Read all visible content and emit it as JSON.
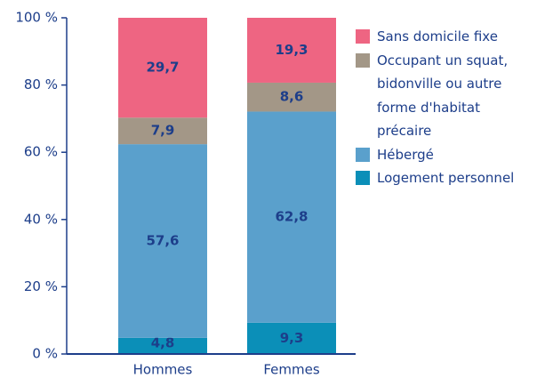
{
  "chart_data": {
    "type": "stacked_bar",
    "categories": [
      "Hommes",
      "Femmes"
    ],
    "series": [
      {
        "name": "Logement personnel",
        "color": "#0b8fb8",
        "values": [
          4.8,
          9.3
        ],
        "value_labels": [
          "4,8",
          "9,3"
        ]
      },
      {
        "name": "Hébergé",
        "color": "#5aa0cc",
        "values": [
          57.6,
          62.8
        ],
        "value_labels": [
          "57,6",
          "62,8"
        ]
      },
      {
        "name": "Occupant un squat, bidonville ou autre forme d'habitat précaire",
        "color": "#a39787",
        "values": [
          7.9,
          8.6
        ],
        "value_labels": [
          "7,9",
          "8,6"
        ]
      },
      {
        "name": "Sans domicile fixe",
        "color": "#ee6582",
        "values": [
          29.7,
          19.3
        ],
        "value_labels": [
          "29,7",
          "19,3"
        ]
      }
    ],
    "ylim": [
      0,
      100
    ],
    "yticks": [
      {
        "value": 0,
        "label": "0 %"
      },
      {
        "value": 20,
        "label": "20 %"
      },
      {
        "value": 40,
        "label": "40 %"
      },
      {
        "value": 60,
        "label": "60 %"
      },
      {
        "value": 80,
        "label": "80 %"
      },
      {
        "value": 100,
        "label": "100 %"
      }
    ],
    "legend": "right"
  }
}
